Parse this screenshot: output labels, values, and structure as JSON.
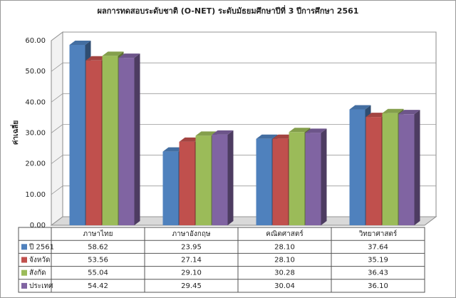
{
  "chart_data": {
    "type": "bar3d",
    "title": "ผลการทดสอบระดับชาติ (O-NET) ระดับมัธยมศึกษาปีที่ 3 ปีการศึกษา 2561",
    "y_label": "ค่าเฉลี่ย",
    "categories": [
      "ภาษาไทย",
      "ภาษาอังกฤษ",
      "คณิตศาสตร์",
      "วิทยาศาสตร์"
    ],
    "series": [
      {
        "name": "ปี 2561",
        "color": "#4f81bd",
        "values": [
          58.62,
          23.95,
          28.1,
          37.64
        ],
        "value_labels": [
          "58.62",
          "23.95",
          "28.10",
          "37.64"
        ]
      },
      {
        "name": "จังหวัด",
        "color": "#c0504d",
        "values": [
          53.56,
          27.14,
          28.1,
          35.19
        ],
        "value_labels": [
          "53.56",
          "27.14",
          "28.10",
          "35.19"
        ]
      },
      {
        "name": "สังกัด",
        "color": "#9bbb59",
        "values": [
          55.04,
          29.1,
          30.28,
          36.43
        ],
        "value_labels": [
          "55.04",
          "29.10",
          "30.28",
          "36.43"
        ]
      },
      {
        "name": "ประเทศ",
        "color": "#8064a2",
        "values": [
          54.42,
          29.45,
          30.04,
          36.1
        ],
        "value_labels": [
          "54.42",
          "29.45",
          "30.04",
          "36.10"
        ]
      }
    ],
    "ylim": [
      0,
      60
    ],
    "yticks": [
      {
        "value": 0,
        "label": "0.00"
      },
      {
        "value": 10,
        "label": "10.00"
      },
      {
        "value": 20,
        "label": "20.00"
      },
      {
        "value": 30,
        "label": "30.00"
      },
      {
        "value": 40,
        "label": "40.00"
      },
      {
        "value": 50,
        "label": "50.00"
      },
      {
        "value": 60,
        "label": "60.00"
      }
    ],
    "grid": true,
    "legend": "table"
  }
}
